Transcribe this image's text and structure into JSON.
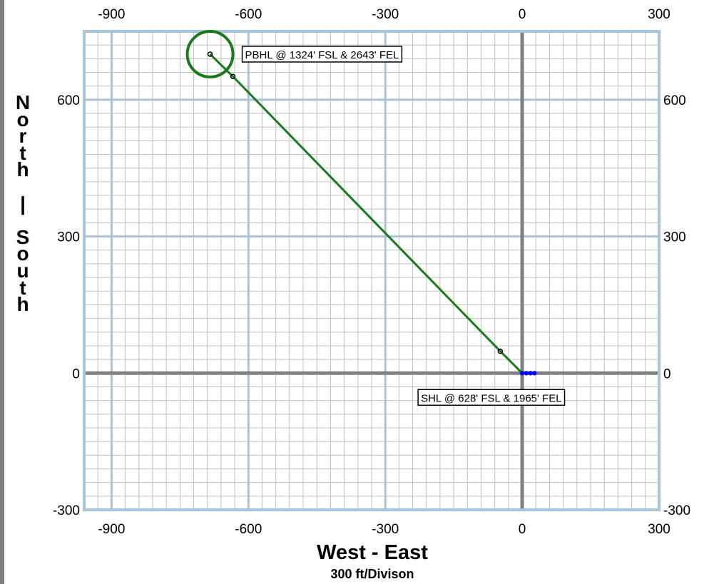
{
  "chart_data": {
    "type": "line",
    "xlabel": "West - East",
    "xlabel_sub": "300 ft/Divison",
    "ylabel": "North | South",
    "xlim": [
      -960,
      300
    ],
    "ylim": [
      -300,
      750
    ],
    "major_step": 300,
    "minor_step": 30,
    "x_ticks": [
      -900,
      -600,
      -300,
      0,
      300
    ],
    "y_ticks": [
      -300,
      0,
      300,
      600
    ],
    "grid": true,
    "series": [
      {
        "points": [
          [
            0,
            0
          ],
          [
            -48,
            48
          ],
          [
            -634,
            651
          ],
          [
            -684,
            700
          ]
        ],
        "color": "#1a7a1a"
      }
    ],
    "markers": [
      {
        "x": -48,
        "y": 48
      },
      {
        "x": -634,
        "y": 651
      },
      {
        "x": -684,
        "y": 700
      }
    ],
    "surface_points": [
      {
        "x": 0,
        "y": 0
      },
      {
        "x": 9,
        "y": 0
      },
      {
        "x": 18,
        "y": 0
      },
      {
        "x": 27,
        "y": 0
      }
    ],
    "target_circle": {
      "x": -684,
      "y": 700,
      "radius": 50
    },
    "annotations": [
      {
        "text": "PBHL @ 1324' FSL & 2643' FEL",
        "x": -684,
        "y": 700
      },
      {
        "text": "SHL @ 628' FSL & 1965' FEL",
        "x": 0,
        "y": 0
      }
    ],
    "colors": {
      "grid_minor": "#c0c0c0",
      "grid_major": "#a6c4dc",
      "axis": "#808080",
      "line": "#1a7a1a",
      "surface": "#0000ff"
    }
  }
}
